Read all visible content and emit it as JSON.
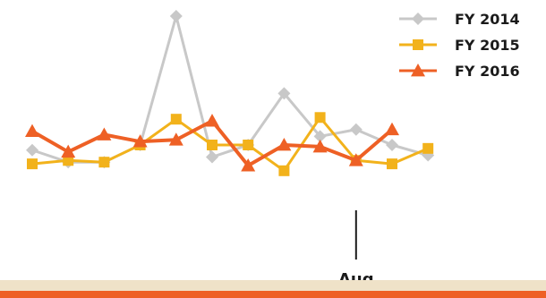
{
  "chart_data": {
    "type": "line",
    "title": "",
    "xlabel": "",
    "ylabel": "",
    "grid": false,
    "legend_position": "top-right",
    "x_index": [
      1,
      2,
      3,
      4,
      5,
      6,
      7,
      8,
      9,
      10,
      11,
      12
    ],
    "ylim": [
      0,
      100
    ],
    "annotation": {
      "label": "Aug",
      "x": 10
    },
    "series": [
      {
        "name": "FY 2014",
        "color": "#c8c8c8",
        "marker": "diamond",
        "values": [
          22,
          15,
          15,
          25,
          100,
          18,
          25,
          55,
          30,
          34,
          25,
          19
        ]
      },
      {
        "name": "FY 2015",
        "color": "#f2b21b",
        "marker": "square",
        "values": [
          14,
          16,
          15,
          25,
          40,
          25,
          25,
          10,
          41,
          16,
          14,
          23
        ]
      },
      {
        "name": "FY 2016",
        "color": "#ee6025",
        "marker": "triangle",
        "values": [
          33,
          21,
          31,
          27,
          28,
          39,
          13,
          25,
          24,
          16,
          34
        ]
      }
    ]
  },
  "footer": {
    "band_color": "#efe2c8",
    "accent_color": "#ee6025"
  }
}
